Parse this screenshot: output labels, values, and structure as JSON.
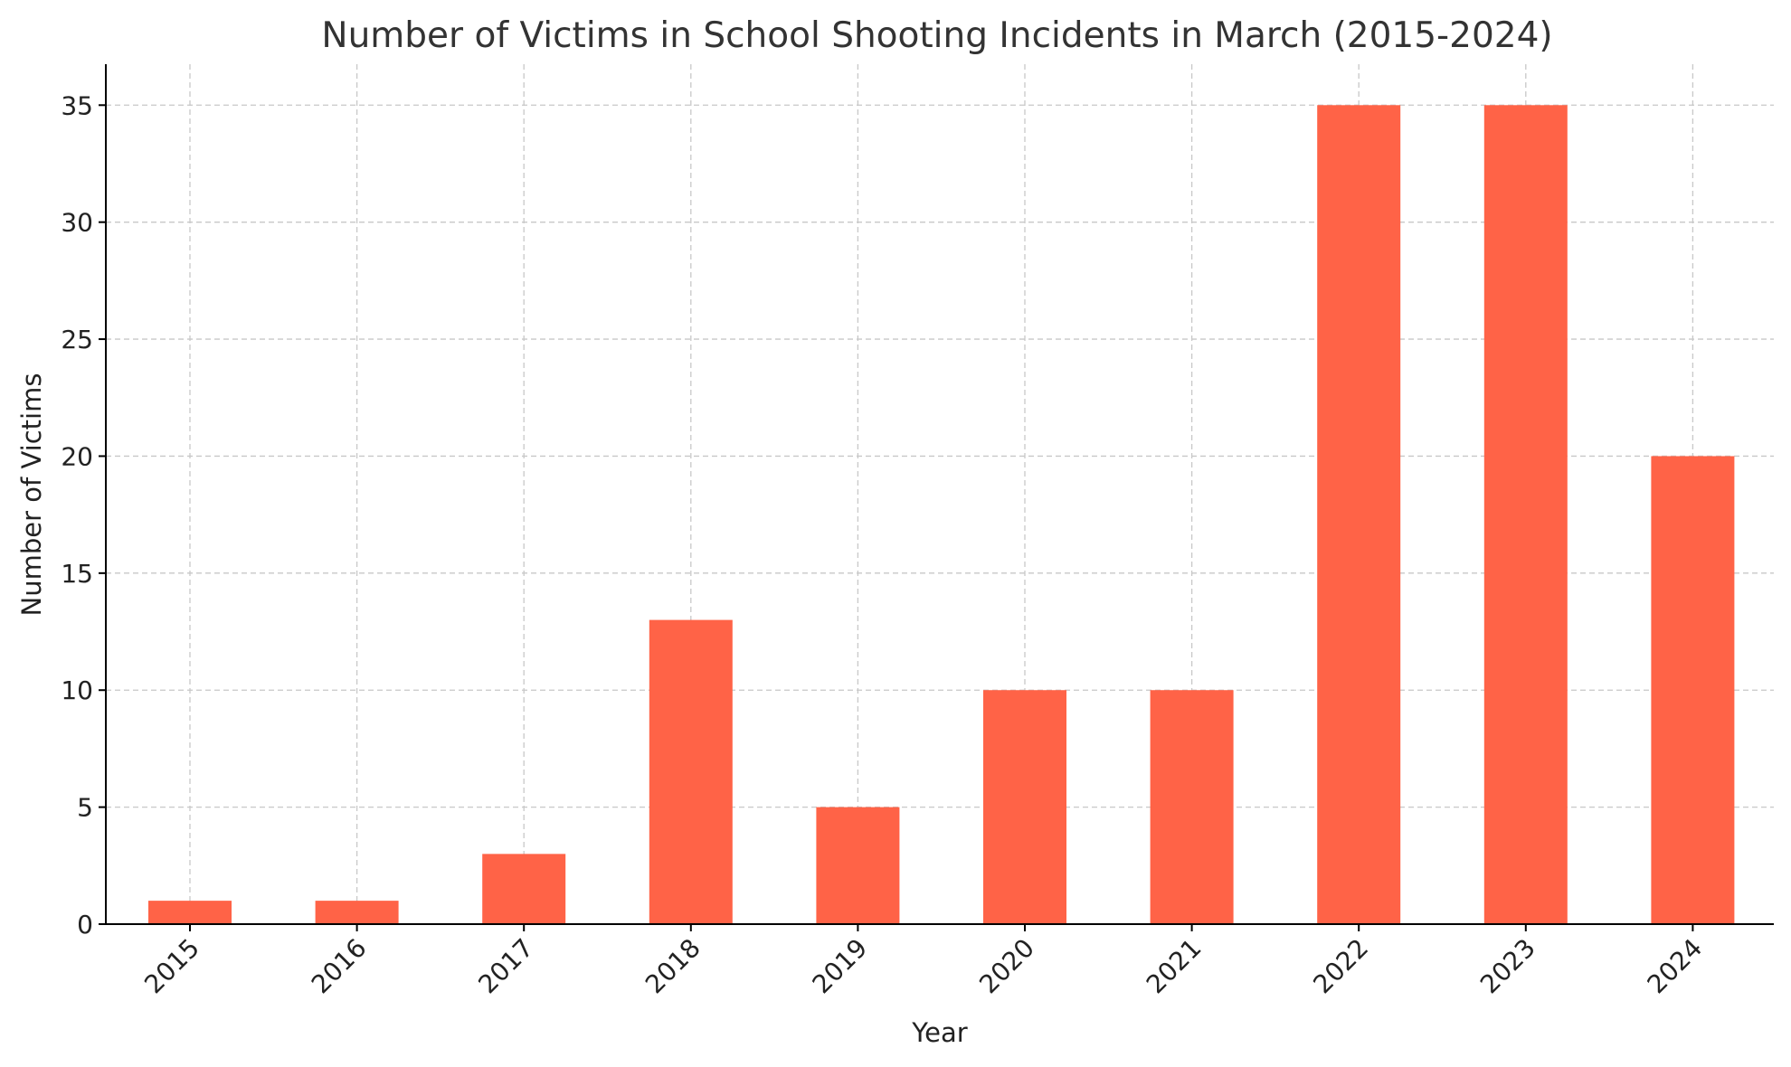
{
  "chart_data": {
    "type": "bar",
    "title": "Number of Victims in School Shooting Incidents in March (2015-2024)",
    "xlabel": "Year",
    "ylabel": "Number of Victims",
    "categories": [
      "2015",
      "2016",
      "2017",
      "2018",
      "2019",
      "2020",
      "2021",
      "2022",
      "2023",
      "2024"
    ],
    "values": [
      1,
      1,
      3,
      13,
      5,
      10,
      10,
      35,
      35,
      20
    ],
    "ylim": [
      0,
      36.75
    ],
    "yticks": [
      0,
      5,
      10,
      15,
      20,
      25,
      30,
      35
    ],
    "grid": true,
    "bar_color": "#ff6347"
  }
}
